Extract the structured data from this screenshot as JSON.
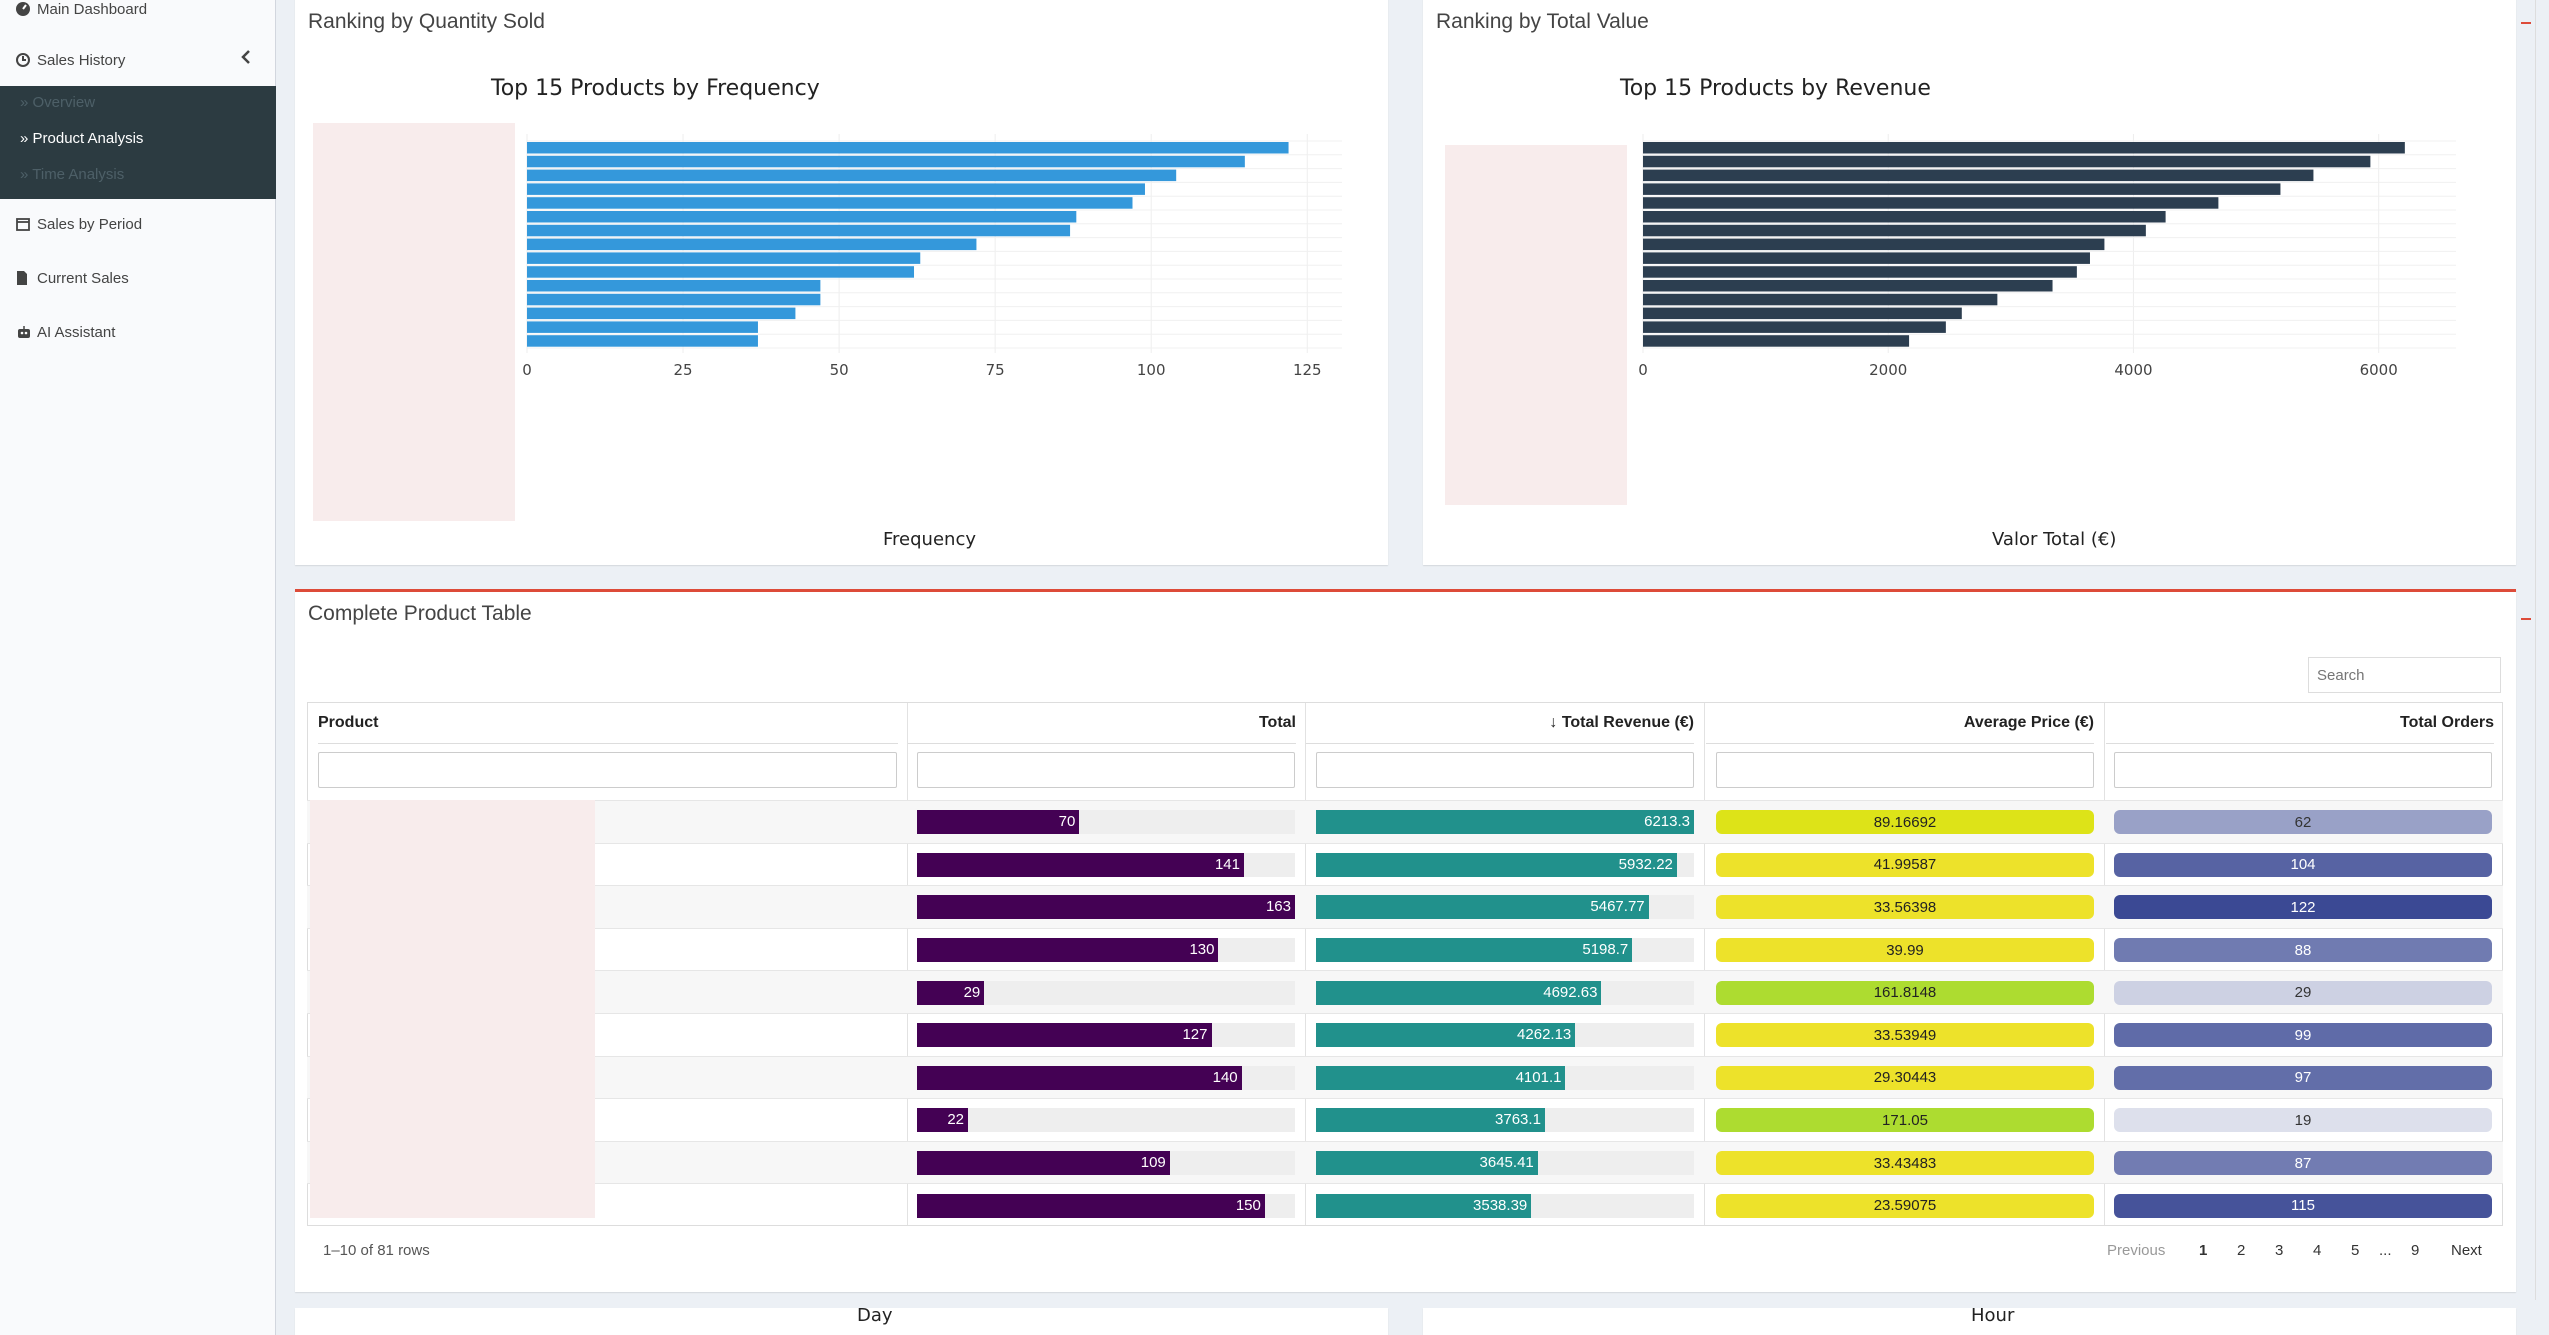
{
  "sidebar": {
    "items": [
      {
        "label": "Main Dashboard",
        "icon": "dashboard-icon"
      },
      {
        "label": "Sales History",
        "icon": "history-icon"
      },
      {
        "label": "Sales by Period",
        "icon": "calendar-icon"
      },
      {
        "label": "Current Sales",
        "icon": "file-icon"
      },
      {
        "label": "AI Assistant",
        "icon": "robot-icon"
      }
    ],
    "submenu": [
      {
        "label": "Overview"
      },
      {
        "label": "Product Analysis"
      },
      {
        "label": "Time Analysis"
      }
    ]
  },
  "box_quantity": {
    "title": "Ranking by Quantity Sold",
    "chart_data": {
      "type": "bar",
      "orientation": "horizontal",
      "title": "Top 15 Products by Frequency",
      "xlabel": "Frequency",
      "ylabel": "",
      "xlim": [
        0,
        128
      ],
      "xticks": [
        "0",
        "25",
        "50",
        "75",
        "100",
        "125"
      ],
      "values": [
        122,
        115,
        104,
        99,
        97,
        88,
        87,
        72,
        63,
        62,
        47,
        47,
        43,
        37,
        37
      ],
      "color": "#3498db",
      "grid": true
    }
  },
  "box_value": {
    "title": "Ranking by Total Value",
    "chart_data": {
      "type": "bar",
      "orientation": "horizontal",
      "title": "Top 15 Products by Revenue",
      "xlabel": "Valor Total (€)",
      "ylabel": "",
      "xlim": [
        0,
        6500
      ],
      "xticks": [
        "0",
        "2000",
        "4000",
        "6000"
      ],
      "values": [
        6213.3,
        5932.22,
        5467.77,
        5198.7,
        4692.63,
        4262.13,
        4101.1,
        3763.1,
        3645.41,
        3538.39,
        3340,
        2890,
        2600,
        2470,
        2170
      ],
      "color": "#2c3e50",
      "grid": true
    }
  },
  "table_box": {
    "title": "Complete Product Table",
    "search_placeholder": "Search",
    "columns": [
      "Product",
      "Total",
      "↓ Total Revenue (€)",
      "Average Price (€)",
      "Total Orders"
    ],
    "rows": [
      {
        "total": 70,
        "revenue": "6213.3",
        "price": "89.16692",
        "orders": 62
      },
      {
        "total": 141,
        "revenue": "5932.22",
        "price": "41.99587",
        "orders": 104
      },
      {
        "total": 163,
        "revenue": "5467.77",
        "price": "33.56398",
        "orders": 122
      },
      {
        "total": 130,
        "revenue": "5198.7",
        "price": "39.99",
        "orders": 88
      },
      {
        "total": 29,
        "revenue": "4692.63",
        "price": "161.8148",
        "orders": 29
      },
      {
        "total": 127,
        "revenue": "4262.13",
        "price": "33.53949",
        "orders": 99
      },
      {
        "total": 140,
        "revenue": "4101.1",
        "price": "29.30443",
        "orders": 97
      },
      {
        "total": 22,
        "revenue": "3763.1",
        "price": "171.05",
        "orders": 19
      },
      {
        "total": 109,
        "revenue": "3645.41",
        "price": "33.43483",
        "orders": 87
      },
      {
        "total": 150,
        "revenue": "3538.39",
        "price": "23.59075",
        "orders": 115
      }
    ],
    "total_max": 163,
    "revenue_max": 6213.3,
    "colors": {
      "total": "#440154",
      "revenue": "#21918c",
      "orders_dark": "#3b4994"
    },
    "footer": {
      "row_info": "1–10 of 81 rows",
      "previous": "Previous",
      "pages": [
        "1",
        "2",
        "3",
        "4",
        "5",
        "...",
        "9"
      ],
      "next": "Next"
    }
  },
  "bottom": {
    "left_label": "Day",
    "right_label": "Hour"
  }
}
